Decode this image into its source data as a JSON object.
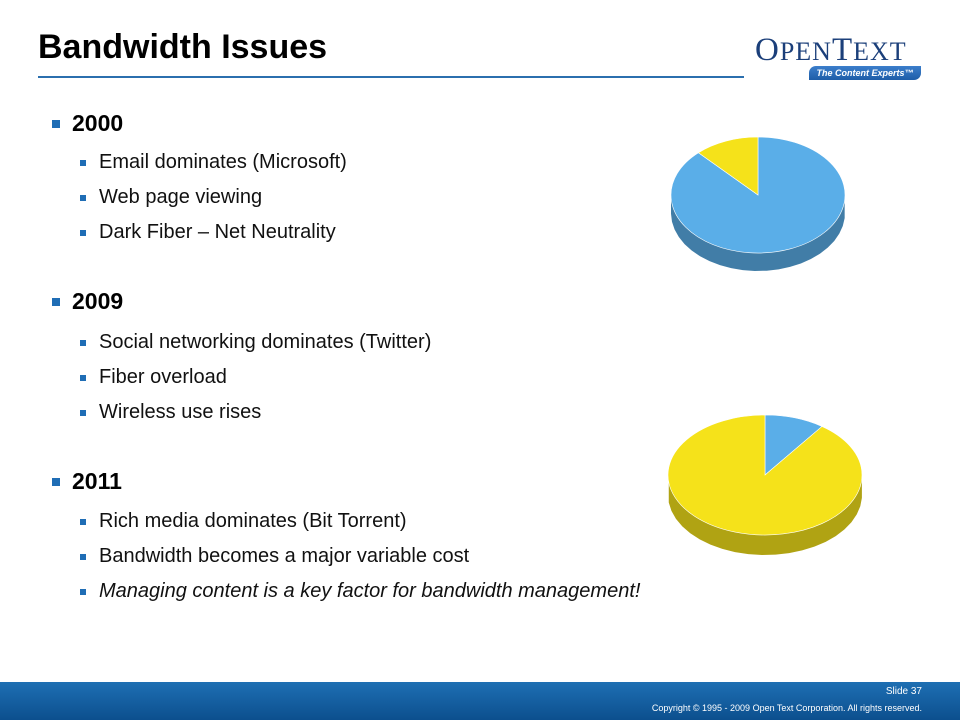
{
  "slide": {
    "title": "Bandwidth Issues",
    "slide_number": "Slide 37",
    "copyright": "Copyright © 1995 - 2009 Open Text Corporation. All rights reserved."
  },
  "logo": {
    "name": "OpenText",
    "tagline": "The Content Experts™"
  },
  "sections": [
    {
      "year": "2000",
      "items": [
        "Email dominates (Microsoft)",
        "Web page viewing",
        "Dark Fiber – Net Neutrality"
      ]
    },
    {
      "year": "2009",
      "items": [
        "Social networking dominates (Twitter)",
        "Fiber overload",
        "Wireless use rises"
      ]
    },
    {
      "year": "2011",
      "items": [
        "Rich media dominates (Bit Torrent)",
        "Bandwidth becomes a major variable cost",
        "Managing content is a key factor for bandwidth management!"
      ]
    }
  ],
  "colors": {
    "accent": "#1f6db5",
    "pie_blue": "#5aaee8",
    "pie_yellow": "#f5e21a",
    "footer": "#155f9f"
  },
  "chart_data": [
    {
      "type": "pie",
      "title": "",
      "slices": [
        {
          "color": "#5aaee8",
          "value": 0.88
        },
        {
          "color": "#f5e21a",
          "value": 0.12
        }
      ]
    },
    {
      "type": "pie",
      "title": "",
      "slices": [
        {
          "color": "#5aaee8",
          "value": 0.1
        },
        {
          "color": "#f5e21a",
          "value": 0.9
        }
      ]
    }
  ]
}
